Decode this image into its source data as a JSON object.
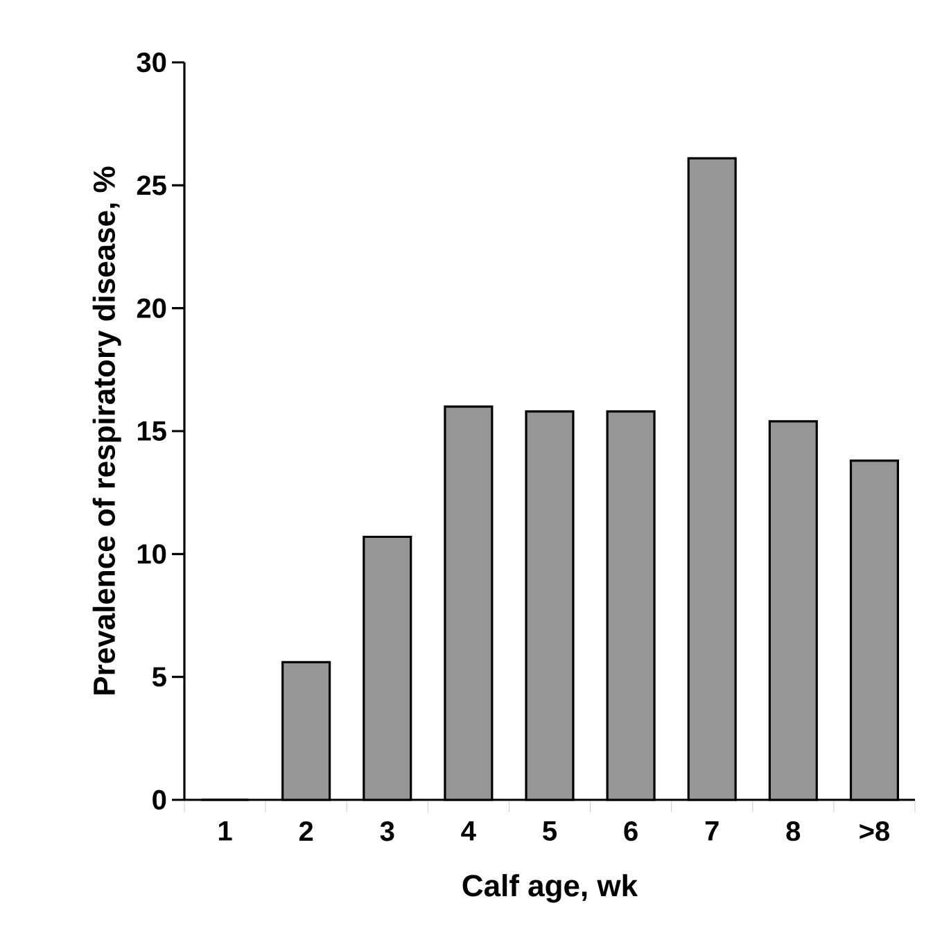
{
  "chart_data": {
    "type": "bar",
    "xlabel": "Calf age, wk",
    "ylabel": "Prevalence of respiratory disease, %",
    "categories": [
      "1",
      "2",
      "3",
      "4",
      "5",
      "6",
      "7",
      "8",
      ">8"
    ],
    "values": [
      0,
      5.6,
      10.7,
      16.0,
      15.8,
      15.8,
      26.1,
      15.4,
      13.8
    ],
    "color": "#969696",
    "ylim": [
      0,
      30
    ],
    "yticks": [
      0,
      5,
      10,
      15,
      20,
      25,
      30
    ],
    "grid": false
  }
}
